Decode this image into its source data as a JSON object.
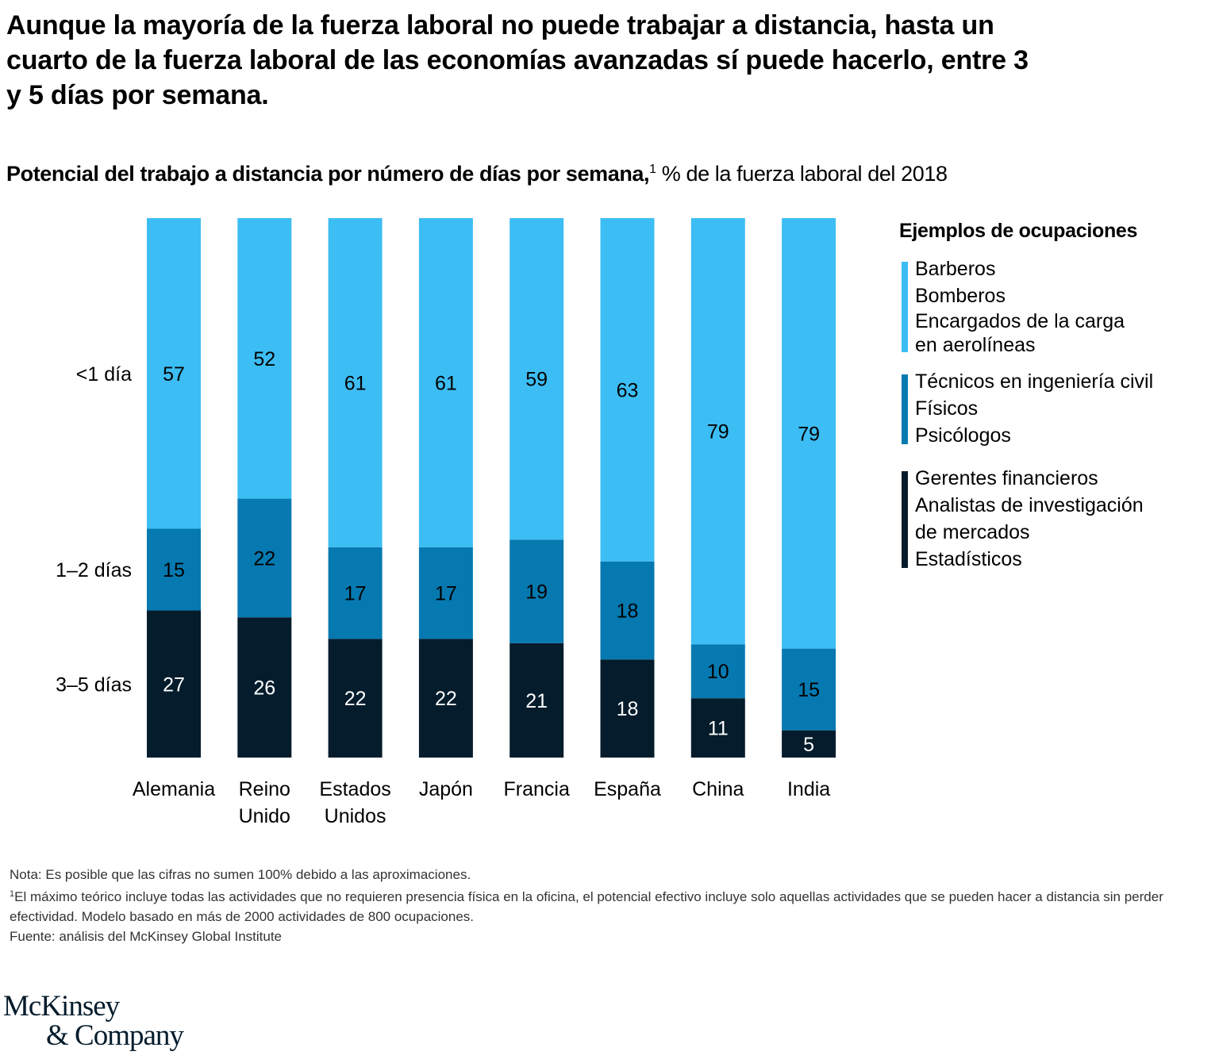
{
  "headline": "Aunque la mayoría de la fuerza laboral no puede trabajar a distancia, hasta un cuarto de la fuerza laboral de las economías avanzadas sí puede hacerlo, entre 3 y 5 días por semana.",
  "subtitle": {
    "bold": "Potencial del trabajo a distancia por número de días por semana,",
    "footnote_ref": "1",
    "regular": " % de la fuerza laboral del 2018"
  },
  "chart_data": {
    "type": "bar",
    "stacked": true,
    "title": "Potencial del trabajo a distancia por número de días por semana, % de la fuerza laboral del 2018",
    "xlabel": "",
    "ylabel": "% de la fuerza laboral del 2018",
    "categories": [
      [
        "Alemania"
      ],
      [
        "Reino",
        "Unido"
      ],
      [
        "Estados",
        "Unidos"
      ],
      [
        "Japón"
      ],
      [
        "Francia"
      ],
      [
        "España"
      ],
      [
        "China"
      ],
      [
        "India"
      ]
    ],
    "series": [
      {
        "name": "3–5 días",
        "color": "#051c2c",
        "label_color": "#ffffff",
        "values": [
          27,
          26,
          22,
          22,
          21,
          18,
          11,
          5
        ]
      },
      {
        "name": "1–2 días",
        "color": "#0679b0",
        "label_color": "#000000",
        "values": [
          15,
          22,
          17,
          17,
          19,
          18,
          10,
          15
        ]
      },
      {
        "name": "<1 día",
        "color": "#3cbdf3",
        "label_color": "#000000",
        "values": [
          57,
          52,
          61,
          61,
          59,
          63,
          79,
          79
        ]
      }
    ],
    "row_labels": [
      "<1 día",
      "1–2 días",
      "3–5 días"
    ],
    "ylim": [
      0,
      100
    ],
    "grid": false,
    "legend_position": "right"
  },
  "legend": {
    "title": "Ejemplos de ocupaciones",
    "groups": [
      {
        "color": "#3cbdf3",
        "items": [
          "Barberos",
          "Bomberos",
          "Encargados de la carga",
          "en aerolíneas"
        ]
      },
      {
        "color": "#0679b0",
        "items": [
          "Técnicos en ingeniería civil",
          "Físicos",
          "Psicólogos"
        ]
      },
      {
        "color": "#051c2c",
        "items": [
          "Gerentes financieros",
          "Analistas de investigación",
          "de mercados",
          "Estadísticos"
        ]
      }
    ]
  },
  "notes": {
    "note": "Nota: Es posible que las cifras no sumen 100% debido a las aproximaciones.",
    "footnote_ref": "1",
    "footnote": "El máximo teórico incluye todas las actividades que no requieren presencia física en la oficina, el potencial efectivo incluye solo aquellas actividades que se pueden hacer a distancia sin perder efectividad. Modelo basado en más de 2000 actividades de 800 ocupaciones.",
    "source": "Fuente: análisis del McKinsey Global Institute"
  },
  "logo": {
    "line1": "McKinsey",
    "line2": "& Company"
  }
}
